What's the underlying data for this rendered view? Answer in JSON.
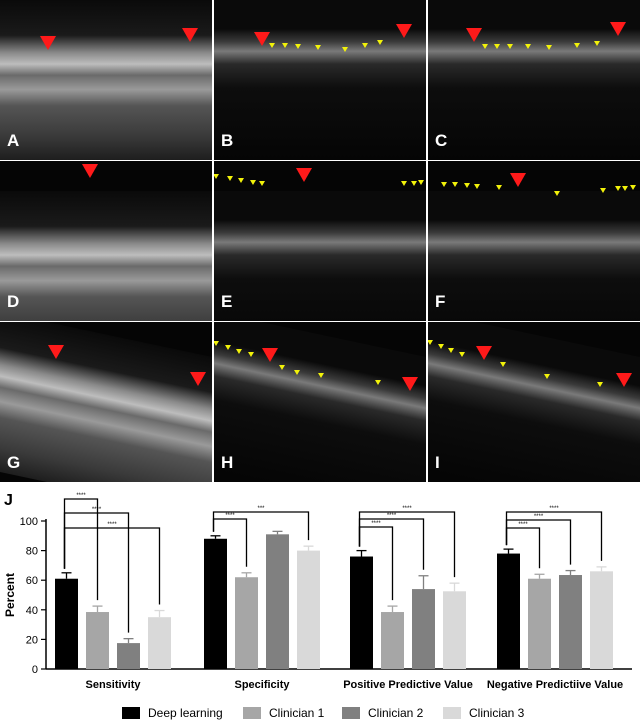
{
  "panels": [
    {
      "label": "A",
      "style": "raw"
    },
    {
      "label": "B",
      "style": "filtered"
    },
    {
      "label": "C",
      "style": "filtered"
    },
    {
      "label": "D",
      "style": "raw"
    },
    {
      "label": "E",
      "style": "filtered"
    },
    {
      "label": "F",
      "style": "filtered"
    },
    {
      "label": "G",
      "style": "raw"
    },
    {
      "label": "H",
      "style": "filtered"
    },
    {
      "label": "I",
      "style": "filtered"
    }
  ],
  "colors": {
    "red_marker": "#ff1a1a",
    "yellow_marker": "#f2f20a",
    "series": [
      "#000000",
      "#a6a6a6",
      "#808080",
      "#d9d9d9"
    ]
  },
  "chart_data": {
    "type": "bar",
    "panel_label": "J",
    "title": "",
    "xlabel": "",
    "ylabel": "Percent",
    "ylim": [
      0,
      100
    ],
    "yticks": [
      0,
      20,
      40,
      60,
      80,
      100
    ],
    "categories": [
      "Sensitivity",
      "Specificity",
      "Positive Predictive Value",
      "Negative Predictiive Value"
    ],
    "series": [
      {
        "name": "Deep learning",
        "values": [
          61,
          88,
          76,
          78
        ],
        "errors": [
          4,
          2,
          4,
          3
        ]
      },
      {
        "name": "Clinician 1",
        "values": [
          38.5,
          62,
          38.5,
          61
        ],
        "errors": [
          4,
          3,
          4,
          3
        ]
      },
      {
        "name": "Clinician 2",
        "values": [
          17.5,
          91,
          54,
          63.5
        ],
        "errors": [
          3,
          2,
          9,
          3
        ]
      },
      {
        "name": "Clinician 3",
        "values": [
          35,
          80,
          52.5,
          66
        ],
        "errors": [
          4.5,
          3,
          5.5,
          3
        ]
      }
    ],
    "significance": [
      {
        "group": 0,
        "label": "****"
      },
      {
        "group": 0,
        "label": "****"
      },
      {
        "group": 0,
        "label": "****"
      },
      {
        "group": 1,
        "label": "****"
      },
      {
        "group": 1,
        "label": "***"
      },
      {
        "group": 2,
        "label": "****"
      },
      {
        "group": 2,
        "label": "****"
      },
      {
        "group": 2,
        "label": "****"
      },
      {
        "group": 3,
        "label": "****"
      },
      {
        "group": 3,
        "label": "****"
      },
      {
        "group": 3,
        "label": "****"
      }
    ],
    "legend_position": "bottom"
  }
}
